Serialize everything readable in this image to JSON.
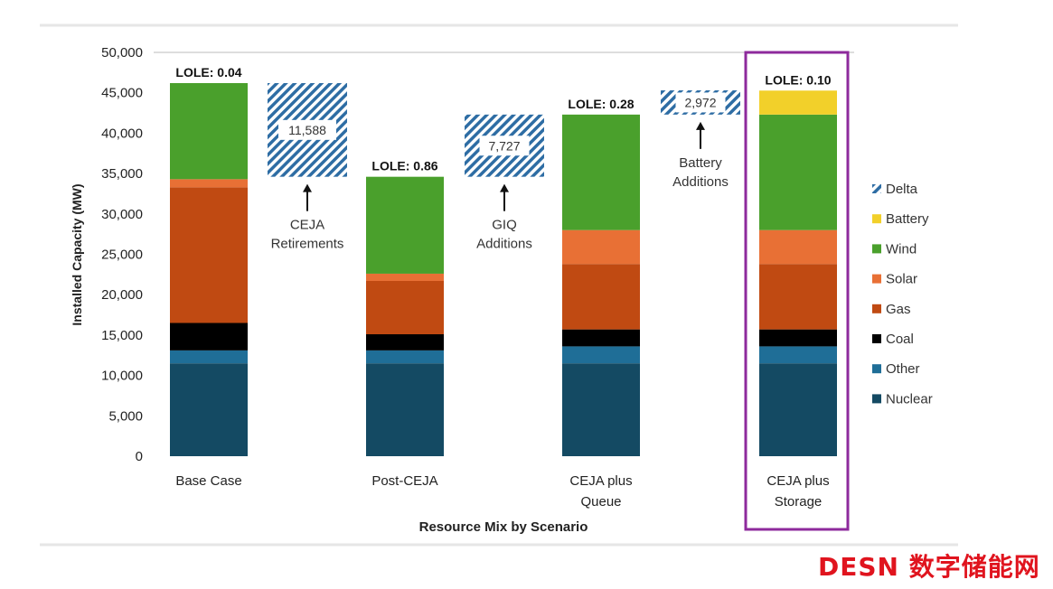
{
  "chart_data": {
    "type": "bar",
    "stacked": true,
    "xlabel": "Resource Mix by Scenario",
    "ylabel": "Installed Capacity (MW)",
    "ylim": [
      0,
      50000
    ],
    "yticks": [
      "0",
      "5,000",
      "10,000",
      "15,000",
      "20,000",
      "25,000",
      "30,000",
      "35,000",
      "40,000",
      "45,000",
      "50,000"
    ],
    "categories": [
      "Base Case",
      "Post-CEJA",
      "CEJA plus Queue",
      "CEJA plus Storage"
    ],
    "category_lines": [
      [
        "Base Case"
      ],
      [
        "Post-CEJA"
      ],
      [
        "CEJA plus",
        "Queue"
      ],
      [
        "CEJA plus",
        "Storage"
      ]
    ],
    "lole": [
      "LOLE: 0.04",
      "LOLE: 0.86",
      "LOLE: 0.28",
      "LOLE: 0.10"
    ],
    "series": [
      {
        "name": "Nuclear",
        "color": "#144a63",
        "values": [
          11500,
          11500,
          11500,
          11500
        ]
      },
      {
        "name": "Other",
        "color": "#1f6e97",
        "values": [
          1600,
          1600,
          2100,
          2100
        ]
      },
      {
        "name": "Coal",
        "color": "#000000",
        "values": [
          3400,
          2000,
          2100,
          2100
        ]
      },
      {
        "name": "Gas",
        "color": "#c04a12",
        "values": [
          16800,
          6600,
          8100,
          8100
        ]
      },
      {
        "name": "Solar",
        "color": "#e87035",
        "values": [
          1000,
          900,
          4200,
          4200
        ]
      },
      {
        "name": "Wind",
        "color": "#4aa02c",
        "values": [
          11900,
          12000,
          14300,
          14300
        ]
      },
      {
        "name": "Battery",
        "color": "#f2d02a",
        "values": [
          0,
          0,
          0,
          2972
        ]
      }
    ],
    "deltas": [
      {
        "label": "11,588",
        "from": 34600,
        "to": 46200,
        "annotation": [
          "CEJA",
          "Retirements"
        ]
      },
      {
        "label": "7,727",
        "from": 34600,
        "to": 42300,
        "annotation": [
          "GIQ",
          "Additions"
        ]
      },
      {
        "label": "2,972",
        "from": 42300,
        "to": 45300,
        "annotation": [
          "Battery",
          "Additions"
        ]
      }
    ],
    "legend": [
      "Delta",
      "Battery",
      "Wind",
      "Solar",
      "Gas",
      "Coal",
      "Other",
      "Nuclear"
    ],
    "legend_position": "right",
    "highlight_category": "CEJA plus Storage",
    "highlight_color": "#8e2a9c",
    "delta_color": "#2e6da4"
  },
  "watermark": "DESN 数字储能网"
}
